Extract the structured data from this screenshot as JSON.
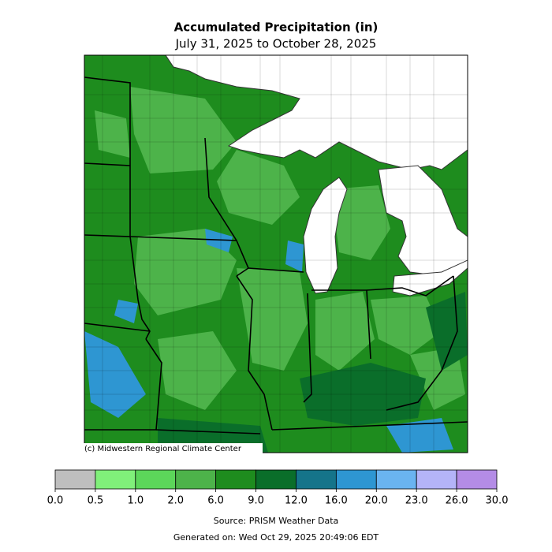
{
  "header": {
    "title": "Accumulated Precipitation (in)",
    "subtitle": "July 31, 2025 to October 28, 2025"
  },
  "map": {
    "credit": "(c) Midwestern Regional Climate Center"
  },
  "legend": {
    "colors": [
      "#bebebe",
      "#80f07a",
      "#5cd65a",
      "#4db34a",
      "#1e8c1e",
      "#0a6e2a",
      "#15748a",
      "#2e96d2",
      "#6ab4f0",
      "#b4b4f8",
      "#b48ce6"
    ],
    "ticks": [
      {
        "value": 0,
        "label": "0.0"
      },
      {
        "value": 0.5,
        "label": "0.5"
      },
      {
        "value": 1,
        "label": "1.0"
      },
      {
        "value": 2,
        "label": "2.0"
      },
      {
        "value": 6,
        "label": "6.0"
      },
      {
        "value": 9,
        "label": "9.0"
      },
      {
        "value": 12,
        "label": "12.0"
      },
      {
        "value": 16,
        "label": "16.0"
      },
      {
        "value": 20,
        "label": "20.0"
      },
      {
        "value": 23,
        "label": "23.0"
      },
      {
        "value": 26,
        "label": "26.0"
      },
      {
        "value": 30,
        "label": "30.0"
      }
    ]
  },
  "footer": {
    "source": "Source: PRISM Weather Data",
    "generated": "Generated on: Wed Oct 29, 2025 20:49:06 EDT"
  }
}
